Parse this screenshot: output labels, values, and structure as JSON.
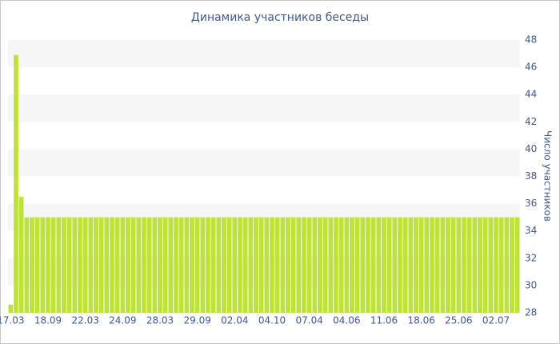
{
  "chart_data": {
    "type": "bar",
    "title": "Динамика участников беседы",
    "y_label": "Число участников",
    "categories": [
      "17.03",
      null,
      null,
      null,
      null,
      null,
      null,
      "18.09",
      null,
      null,
      null,
      null,
      null,
      null,
      "22.03",
      null,
      null,
      null,
      null,
      null,
      null,
      "24.09",
      null,
      null,
      null,
      null,
      null,
      null,
      "28.03",
      null,
      null,
      null,
      null,
      null,
      null,
      "29.09",
      null,
      null,
      null,
      null,
      null,
      null,
      "02.04",
      null,
      null,
      null,
      null,
      null,
      null,
      "04.10",
      null,
      null,
      null,
      null,
      null,
      null,
      "07.04",
      null,
      null,
      null,
      null,
      null,
      null,
      "04.06",
      null,
      null,
      null,
      null,
      null,
      null,
      "11.06",
      null,
      null,
      null,
      null,
      null,
      null,
      "18.06",
      null,
      null,
      null,
      null,
      null,
      null,
      "25.06",
      null,
      null,
      null,
      null,
      null,
      null,
      "02.07",
      null,
      null,
      null,
      null
    ],
    "values": [
      28.6,
      46.9,
      36.5,
      35,
      35,
      35,
      35,
      35,
      35,
      35,
      35,
      35,
      35,
      35,
      35,
      35,
      35,
      35,
      35,
      35,
      35,
      35,
      35,
      35,
      35,
      35,
      35,
      35,
      35,
      35,
      35,
      35,
      35,
      35,
      35,
      35,
      35,
      35,
      35,
      35,
      35,
      35,
      35,
      35,
      35,
      35,
      35,
      35,
      35,
      35,
      35,
      35,
      35,
      35,
      35,
      35,
      35,
      35,
      35,
      35,
      35,
      35,
      35,
      35,
      35,
      35,
      35,
      35,
      35,
      35,
      35,
      35,
      35,
      35,
      35,
      35,
      35,
      35,
      35,
      35,
      35,
      35,
      35,
      35,
      35,
      35,
      35,
      35,
      35,
      35,
      35,
      35,
      35,
      35,
      35,
      35
    ],
    "color": "#bde33a",
    "ylim": [
      28,
      48
    ],
    "yticks": [
      28,
      30,
      32,
      34,
      36,
      38,
      40,
      42,
      44,
      46,
      48
    ],
    "y_axis_side": "right",
    "grid": "bands"
  }
}
